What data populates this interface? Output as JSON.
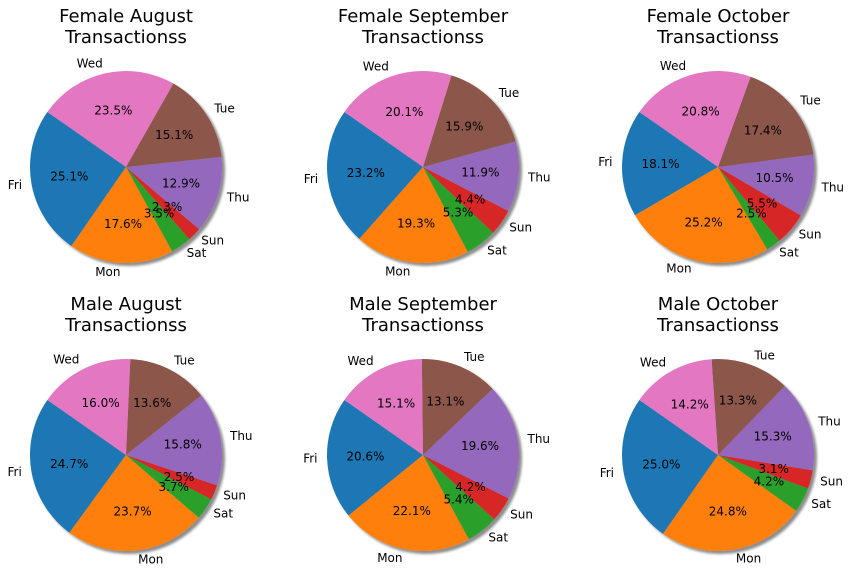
{
  "colors": {
    "Fri": "#1f77b4",
    "Mon": "#ff7f0e",
    "Sat": "#2ca02c",
    "Sun": "#d62728",
    "Thu": "#9467bd",
    "Tue": "#8c564b",
    "Wed": "#e377c2"
  },
  "chart_data": [
    {
      "type": "pie",
      "title_line1": "Female August",
      "title_line2": "Transactionss",
      "start_angle_deg": 145,
      "slices": [
        {
          "label": "Fri",
          "value": 25.1,
          "pct_label": "25.1%"
        },
        {
          "label": "Mon",
          "value": 17.6,
          "pct_label": "17.6%"
        },
        {
          "label": "Sat",
          "value": 3.5,
          "pct_label": "3.5%"
        },
        {
          "label": "Sun",
          "value": 2.3,
          "pct_label": "2.3%"
        },
        {
          "label": "Thu",
          "value": 12.9,
          "pct_label": "12.9%"
        },
        {
          "label": "Tue",
          "value": 15.1,
          "pct_label": "15.1%"
        },
        {
          "label": "Wed",
          "value": 23.5,
          "pct_label": "23.5%"
        }
      ]
    },
    {
      "type": "pie",
      "title_line1": "Female September",
      "title_line2": "Transactionss",
      "start_angle_deg": 145,
      "slices": [
        {
          "label": "Fri",
          "value": 23.2,
          "pct_label": "23.2%"
        },
        {
          "label": "Mon",
          "value": 19.3,
          "pct_label": "19.3%"
        },
        {
          "label": "Sat",
          "value": 5.3,
          "pct_label": "5.3%"
        },
        {
          "label": "Sun",
          "value": 4.4,
          "pct_label": "4.4%"
        },
        {
          "label": "Thu",
          "value": 11.9,
          "pct_label": "11.9%"
        },
        {
          "label": "Tue",
          "value": 15.9,
          "pct_label": "15.9%"
        },
        {
          "label": "Wed",
          "value": 20.1,
          "pct_label": "20.1%"
        }
      ]
    },
    {
      "type": "pie",
      "title_line1": "Female October",
      "title_line2": "Transactionss",
      "start_angle_deg": 145,
      "slices": [
        {
          "label": "Fri",
          "value": 18.1,
          "pct_label": "18.1%"
        },
        {
          "label": "Mon",
          "value": 25.2,
          "pct_label": "25.2%"
        },
        {
          "label": "Sat",
          "value": 2.5,
          "pct_label": "2.5%"
        },
        {
          "label": "Sun",
          "value": 5.5,
          "pct_label": "5.5%"
        },
        {
          "label": "Thu",
          "value": 10.5,
          "pct_label": "10.5%"
        },
        {
          "label": "Tue",
          "value": 17.4,
          "pct_label": "17.4%"
        },
        {
          "label": "Wed",
          "value": 20.8,
          "pct_label": "20.8%"
        }
      ]
    },
    {
      "type": "pie",
      "title_line1": "Male August",
      "title_line2": "Transactionss",
      "start_angle_deg": 145,
      "slices": [
        {
          "label": "Fri",
          "value": 24.7,
          "pct_label": "24.7%"
        },
        {
          "label": "Mon",
          "value": 23.7,
          "pct_label": "23.7%"
        },
        {
          "label": "Sat",
          "value": 3.7,
          "pct_label": "3.7%"
        },
        {
          "label": "Sun",
          "value": 2.5,
          "pct_label": "2.5%"
        },
        {
          "label": "Thu",
          "value": 15.8,
          "pct_label": "15.8%"
        },
        {
          "label": "Tue",
          "value": 13.6,
          "pct_label": "13.6%"
        },
        {
          "label": "Wed",
          "value": 16.0,
          "pct_label": "16.0%"
        }
      ]
    },
    {
      "type": "pie",
      "title_line1": "Male September",
      "title_line2": "Transactionss",
      "start_angle_deg": 145,
      "slices": [
        {
          "label": "Fri",
          "value": 20.6,
          "pct_label": "20.6%"
        },
        {
          "label": "Mon",
          "value": 22.1,
          "pct_label": "22.1%"
        },
        {
          "label": "Sat",
          "value": 5.4,
          "pct_label": "5.4%"
        },
        {
          "label": "Sun",
          "value": 4.2,
          "pct_label": "4.2%"
        },
        {
          "label": "Thu",
          "value": 19.6,
          "pct_label": "19.6%"
        },
        {
          "label": "Tue",
          "value": 13.1,
          "pct_label": "13.1%"
        },
        {
          "label": "Wed",
          "value": 15.1,
          "pct_label": "15.1%"
        }
      ]
    },
    {
      "type": "pie",
      "title_line1": "Male October",
      "title_line2": "Transactionss",
      "start_angle_deg": 145,
      "slices": [
        {
          "label": "Fri",
          "value": 25.0,
          "pct_label": "25.0%"
        },
        {
          "label": "Mon",
          "value": 24.8,
          "pct_label": "24.8%"
        },
        {
          "label": "Sat",
          "value": 4.2,
          "pct_label": "4.2%"
        },
        {
          "label": "Sun",
          "value": 3.1,
          "pct_label": "3.1%"
        },
        {
          "label": "Thu",
          "value": 15.3,
          "pct_label": "15.3%"
        },
        {
          "label": "Tue",
          "value": 13.3,
          "pct_label": "13.3%"
        },
        {
          "label": "Wed",
          "value": 14.2,
          "pct_label": "14.2%"
        }
      ]
    }
  ]
}
